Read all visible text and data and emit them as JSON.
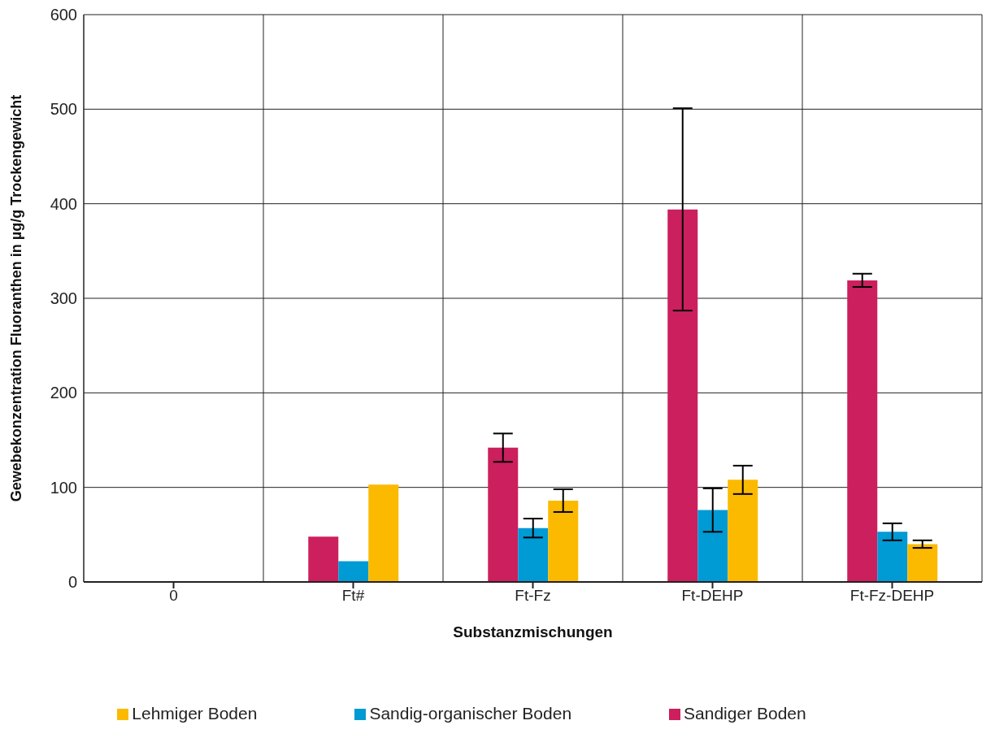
{
  "chart_data": {
    "type": "bar",
    "xlabel": "Substanzmischungen",
    "ylabel": "Gewebekonzentration Fluoranthen in µg/g Trockengewicht",
    "categories": [
      "0",
      "Ft#",
      "Ft-Fz",
      "Ft-DEHP",
      "Ft-Fz-DEHP"
    ],
    "series": [
      {
        "name": "Sandiger Boden",
        "color": "#cc1f5d",
        "values": [
          0,
          48,
          142,
          394,
          319
        ],
        "errors": [
          null,
          null,
          15,
          107,
          7
        ]
      },
      {
        "name": "Sandig-organischer Boden",
        "color": "#009ad4",
        "values": [
          0,
          22,
          57,
          76,
          53
        ],
        "errors": [
          null,
          null,
          10,
          23,
          9
        ]
      },
      {
        "name": "Lehmiger Boden",
        "color": "#fbba00",
        "values": [
          0,
          103,
          86,
          108,
          40
        ],
        "errors": [
          null,
          null,
          12,
          15,
          4
        ]
      }
    ],
    "ylim": [
      0,
      600
    ],
    "yticks": [
      0,
      100,
      200,
      300,
      400,
      500,
      600
    ],
    "grid": true,
    "legend": "bottom"
  }
}
